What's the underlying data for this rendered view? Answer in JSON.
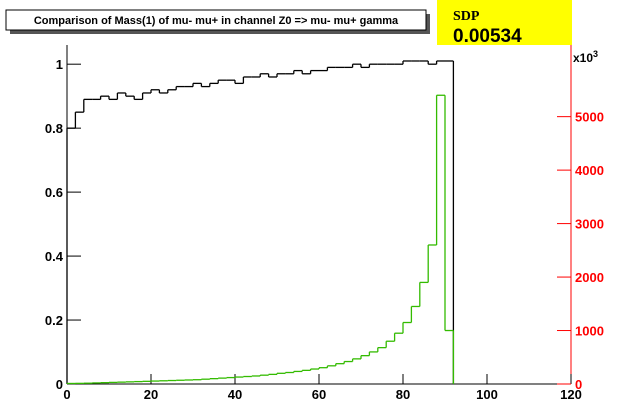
{
  "chart_data": {
    "type": "histogram",
    "title": "Comparison of Mass(1) of mu- mu+ in channel Z0 => mu- mu+ gamma",
    "stat_label": "SDP",
    "stat_value": "0.00534",
    "y2_multiplier": "x10",
    "y2_multiplier_exp": "3",
    "bins": [
      0,
      2,
      4,
      6,
      8,
      10,
      12,
      14,
      16,
      18,
      20,
      22,
      24,
      26,
      28,
      30,
      32,
      34,
      36,
      38,
      40,
      42,
      44,
      46,
      48,
      50,
      52,
      54,
      56,
      58,
      60,
      62,
      64,
      66,
      68,
      70,
      72,
      74,
      76,
      78,
      80,
      82,
      84,
      86,
      88,
      90,
      92
    ],
    "series": [
      {
        "color": "#000000",
        "values": [
          0.8,
          0.85,
          0.89,
          0.89,
          0.9,
          0.89,
          0.91,
          0.9,
          0.89,
          0.91,
          0.92,
          0.91,
          0.92,
          0.93,
          0.93,
          0.94,
          0.93,
          0.94,
          0.95,
          0.95,
          0.94,
          0.96,
          0.96,
          0.97,
          0.96,
          0.97,
          0.97,
          0.98,
          0.97,
          0.98,
          0.98,
          0.99,
          0.99,
          0.99,
          1.0,
          0.99,
          1.0,
          1.0,
          1.0,
          1.0,
          1.01,
          1.01,
          1.01,
          1.0,
          1.01,
          1.01
        ]
      },
      {
        "color": "#33bb00",
        "axis": "y2",
        "values": [
          10,
          12,
          15,
          20,
          25,
          30,
          35,
          40,
          45,
          50,
          55,
          60,
          65,
          70,
          75,
          80,
          90,
          100,
          110,
          120,
          130,
          140,
          150,
          165,
          180,
          200,
          215,
          235,
          255,
          280,
          305,
          340,
          380,
          420,
          470,
          530,
          600,
          680,
          800,
          950,
          1150,
          1450,
          1900,
          2600,
          5400,
          1000
        ]
      }
    ],
    "xlim": [
      0,
      120
    ],
    "xticks": [
      0,
      20,
      40,
      60,
      80,
      100,
      120
    ],
    "ylim": [
      0,
      1.06
    ],
    "yticks": [
      0,
      0.2,
      0.4,
      0.6,
      0.8,
      1
    ],
    "y2lim": [
      0,
      6340
    ],
    "y2ticks": [
      0,
      1000,
      2000,
      3000,
      4000,
      5000
    ],
    "y2color": "#ff0000"
  }
}
